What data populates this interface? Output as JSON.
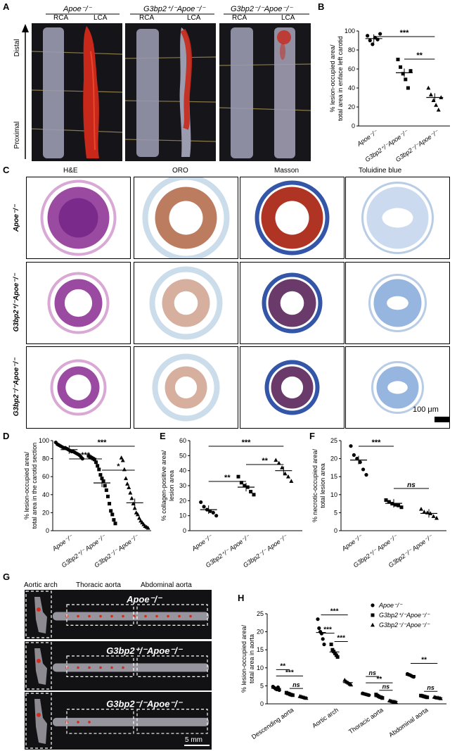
{
  "panels": {
    "A": "A",
    "B": "B",
    "C": "C",
    "D": "D",
    "E": "E",
    "F": "F",
    "G": "G",
    "H": "H"
  },
  "panelA": {
    "groups": [
      "Apoe⁻/⁻",
      "G3bp2⁺/⁻Apoe⁻/⁻",
      "G3bp2⁻/⁻Apoe⁻/⁻"
    ],
    "rca": "RCA",
    "lca": "LCA",
    "distal": "Distal",
    "proximal": "Proximal"
  },
  "panelC": {
    "stains": [
      "H&E",
      "ORO",
      "Masson",
      "Toluidine blue"
    ],
    "rows": [
      "Apoe⁻/⁻",
      "G3bp2⁺/⁻Apoe⁻/⁻",
      "G3bp2⁻/⁻Apoe⁻/⁻"
    ],
    "scale": "100 μm"
  },
  "panelG": {
    "regions": [
      "Aortic arch",
      "Thoracic aorta",
      "Abdominal aorta"
    ],
    "rows": [
      "Apoe⁻/⁻",
      "G3bp2⁺/⁻Apoe⁻/⁻",
      "G3bp2⁻/⁻Apoe⁻/⁻"
    ],
    "scale": "5 mm"
  },
  "colors": {
    "ha": "#7a2a8a",
    "oro": "#b46e4e",
    "masson_red": "#b03424",
    "masson_blue": "#3456a8",
    "tb": "#6a96d2",
    "vessel": "#9c9cb0",
    "lesion": "#d62a1c"
  },
  "chart_data": [
    {
      "id": "B",
      "type": "scatter",
      "ylabel": "% lesion-occupied area/ total area in enface left carotid",
      "ylim": [
        0,
        100
      ],
      "yticks": [
        0,
        20,
        40,
        60,
        80,
        100
      ],
      "categories": [
        "Apoe⁻/⁻",
        "G3bp2⁺/⁻Apoe⁻/⁻",
        "G3bp2⁻/⁻Apoe⁻/⁻"
      ],
      "series": [
        {
          "values": [
            95,
            90,
            86,
            93,
            91,
            97
          ],
          "mean": 92
        },
        {
          "values": [
            70,
            62,
            55,
            49,
            40,
            58
          ],
          "mean": 56
        },
        {
          "values": [
            40,
            33,
            27,
            22,
            17,
            30
          ],
          "mean": 30
        }
      ],
      "annotations": [
        {
          "pair": [
            0,
            2
          ],
          "text": "***"
        },
        {
          "pair": [
            1,
            2
          ],
          "text": "**"
        }
      ]
    },
    {
      "id": "D",
      "type": "scatter",
      "ylabel": "% lesion-occupied area/ total area in the carotid section",
      "ylim": [
        0,
        100
      ],
      "yticks": [
        0,
        20,
        40,
        60,
        80,
        100
      ],
      "categories": [
        "Apoe⁻/⁻",
        "G3bp2⁺/⁻ Apoe⁻/⁻",
        "G3bp2⁻/⁻ Apoe⁻/⁻"
      ],
      "series": [
        {
          "values": [
            98,
            96,
            95,
            94,
            93,
            92,
            92,
            91,
            90,
            89,
            88,
            88,
            87,
            86,
            85,
            84,
            82,
            80
          ],
          "mean": 90
        },
        {
          "values": [
            83,
            82,
            81,
            80,
            79,
            76,
            72,
            68,
            62,
            58,
            55,
            50,
            45,
            38,
            30,
            22,
            18,
            12,
            8
          ],
          "mean": 53
        },
        {
          "values": [
            81,
            78,
            68,
            58,
            52,
            48,
            42,
            36,
            30,
            25,
            20,
            18,
            14,
            11,
            9,
            7,
            5,
            4,
            3
          ],
          "mean": 31
        }
      ],
      "annotations": [
        {
          "pair": [
            0,
            1
          ],
          "text": "***"
        },
        {
          "pair": [
            0,
            2
          ],
          "text": "***"
        },
        {
          "pair": [
            1,
            2
          ],
          "text": "*"
        }
      ]
    },
    {
      "id": "E",
      "type": "scatter",
      "ylabel": "% collagen-positive area/lesion area",
      "ylim": [
        0,
        60
      ],
      "yticks": [
        0,
        10,
        20,
        30,
        40,
        50,
        60
      ],
      "categories": [
        "Apoe⁻/⁻",
        "G3bp2⁺/⁻ Apoe⁻/⁻",
        "G3bp2⁻/⁻ Apoe⁻/⁻"
      ],
      "series": [
        {
          "values": [
            19,
            16,
            14,
            13,
            12,
            10
          ],
          "mean": 14
        },
        {
          "values": [
            36,
            32,
            30,
            29,
            26,
            24
          ],
          "mean": 29
        },
        {
          "values": [
            47,
            45,
            42,
            38,
            36,
            33
          ],
          "mean": 40
        }
      ],
      "annotations": [
        {
          "pair": [
            0,
            1
          ],
          "text": "**"
        },
        {
          "pair": [
            0,
            2
          ],
          "text": "***"
        },
        {
          "pair": [
            1,
            2
          ],
          "text": "**"
        }
      ]
    },
    {
      "id": "F",
      "type": "scatter",
      "ylabel": "% necrotic-occupied area/total lesion area",
      "ylim": [
        0,
        25
      ],
      "yticks": [
        0,
        5,
        10,
        15,
        20,
        25
      ],
      "categories": [
        "Apoe⁻/⁻",
        "G3bp2⁺/⁻ Apoe⁻/⁻",
        "G3bp2⁻/⁻ Apoe⁻/⁻"
      ],
      "series": [
        {
          "values": [
            23.5,
            21,
            20,
            19,
            17,
            15.5
          ],
          "mean": 19.6
        },
        {
          "values": [
            8.5,
            8,
            7.5,
            7.2,
            7,
            6.5
          ],
          "mean": 7.6
        },
        {
          "values": [
            6,
            5.2,
            5,
            4.8,
            4,
            3.5
          ],
          "mean": 4.8
        }
      ],
      "annotations": [
        {
          "pair": [
            0,
            1
          ],
          "text": "***"
        },
        {
          "pair": [
            1,
            2
          ],
          "text": "ns"
        }
      ]
    },
    {
      "id": "H",
      "type": "scatter",
      "ylabel": "% lesion-occupied area/ total area in aorta",
      "ylim": [
        0,
        25
      ],
      "yticks": [
        0,
        5,
        10,
        15,
        20,
        25
      ],
      "categories": [
        "Descending aorta",
        "Aortic arch",
        "Thoracic aorta",
        "Abdominal aorta"
      ],
      "legend": [
        "Apoe⁻/⁻",
        "G3bp2⁺/⁻Apoe⁻/⁻",
        "G3bp2⁻/⁻Apoe⁻/⁻"
      ],
      "series": [
        {
          "name": "Apoe⁻/⁻",
          "values": [
            [
              4.8,
              4.5,
              4.2,
              4.0,
              4.6,
              3.8
            ],
            [
              23.5,
              21,
              20,
              19.5,
              18,
              16.5
            ],
            [
              2.9,
              2.8,
              2.7,
              2.6,
              2.5,
              2.4
            ],
            [
              8.3,
              8.1,
              8.0,
              7.8,
              7.6,
              7.5
            ]
          ],
          "mean": [
            4.3,
            19.8,
            2.6,
            7.9
          ]
        },
        {
          "name": "G3bp2⁺/⁻Apoe⁻/⁻",
          "values": [
            [
              3.1,
              2.9,
              2.8,
              2.6,
              2.5,
              2.4
            ],
            [
              16.5,
              15,
              14.5,
              14,
              13.5,
              13
            ],
            [
              2.6,
              2.3,
              2.1,
              1.9,
              1.8,
              1.6
            ],
            [
              2.3,
              2.2,
              2.1,
              2.0,
              1.9,
              1.8
            ]
          ],
          "mean": [
            2.7,
            14.4,
            2.0,
            2.0
          ]
        },
        {
          "name": "G3bp2⁻/⁻Apoe⁻/⁻",
          "values": [
            [
              2.1,
              2.0,
              1.9,
              1.8,
              1.7,
              1.6
            ],
            [
              6.6,
              6.2,
              6.0,
              5.8,
              5.5,
              5.3
            ],
            [
              0.9,
              0.8,
              0.7,
              0.6,
              0.6,
              0.5
            ],
            [
              1.9,
              1.8,
              1.7,
              1.7,
              1.6,
              1.5
            ]
          ],
          "mean": [
            1.8,
            5.9,
            0.7,
            1.7
          ]
        }
      ],
      "annotations": [
        {
          "cat": 0,
          "pair": [
            0,
            1
          ],
          "text": "**"
        },
        {
          "cat": 0,
          "pair": [
            0,
            2
          ],
          "text": "***"
        },
        {
          "cat": 0,
          "pair": [
            1,
            2
          ],
          "text": "ns"
        },
        {
          "cat": 1,
          "pair": [
            0,
            1
          ],
          "text": "***"
        },
        {
          "cat": 1,
          "pair": [
            0,
            2
          ],
          "text": "***"
        },
        {
          "cat": 1,
          "pair": [
            1,
            2
          ],
          "text": "***"
        },
        {
          "cat": 2,
          "pair": [
            0,
            1
          ],
          "text": "ns"
        },
        {
          "cat": 2,
          "pair": [
            0,
            2
          ],
          "text": "**"
        },
        {
          "cat": 2,
          "pair": [
            1,
            2
          ],
          "text": "ns"
        },
        {
          "cat": 3,
          "pair": [
            0,
            2
          ],
          "text": "**"
        },
        {
          "cat": 3,
          "pair": [
            1,
            2
          ],
          "text": "ns"
        }
      ]
    }
  ]
}
